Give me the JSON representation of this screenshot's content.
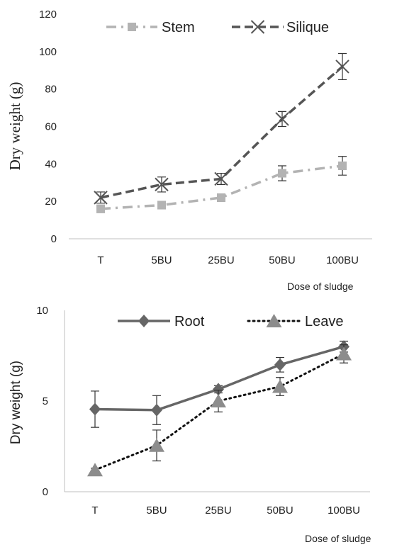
{
  "chart_data": [
    {
      "type": "line",
      "categories": [
        "T",
        "5BU",
        "25BU",
        "50BU",
        "100BU"
      ],
      "ylim": [
        0,
        120
      ],
      "yticks": [
        0,
        20,
        40,
        60,
        80,
        100,
        120
      ],
      "ylabel": "Dry weight (g)",
      "xlabel": "Dose of sludge",
      "legend": "top",
      "grid": false,
      "series": [
        {
          "name": "Stem",
          "values": [
            16,
            18,
            22,
            35,
            39
          ],
          "errors": [
            2,
            2,
            2,
            4,
            5
          ],
          "color": "#b3b3b3",
          "style": "dash-dot",
          "marker": "square"
        },
        {
          "name": "Silique",
          "values": [
            22,
            29,
            32,
            64,
            92
          ],
          "errors": [
            3,
            4,
            3,
            4,
            7
          ],
          "color": "#555555",
          "style": "dashed",
          "marker": "x"
        }
      ]
    },
    {
      "type": "line",
      "categories": [
        "T",
        "5BU",
        "25BU",
        "50BU",
        "100BU"
      ],
      "ylim": [
        0,
        10
      ],
      "yticks": [
        0,
        5,
        10
      ],
      "ylabel": "Dry weight (g)",
      "xlabel": "Dose of sludge",
      "legend": "top",
      "grid": false,
      "series": [
        {
          "name": "Root",
          "values": [
            4.55,
            4.5,
            5.65,
            7.0,
            8.0
          ],
          "errors": [
            1.0,
            0.8,
            0.2,
            0.4,
            0.3
          ],
          "color": "#666666",
          "style": "solid",
          "marker": "diamond"
        },
        {
          "name": "Leave",
          "values": [
            1.2,
            2.55,
            5.0,
            5.8,
            7.6
          ],
          "errors": [
            0.1,
            0.85,
            0.6,
            0.5,
            0.5
          ],
          "color": "#111111",
          "style": "dotted",
          "marker": "triangle",
          "marker_color": "#8c8c8c"
        }
      ]
    }
  ]
}
